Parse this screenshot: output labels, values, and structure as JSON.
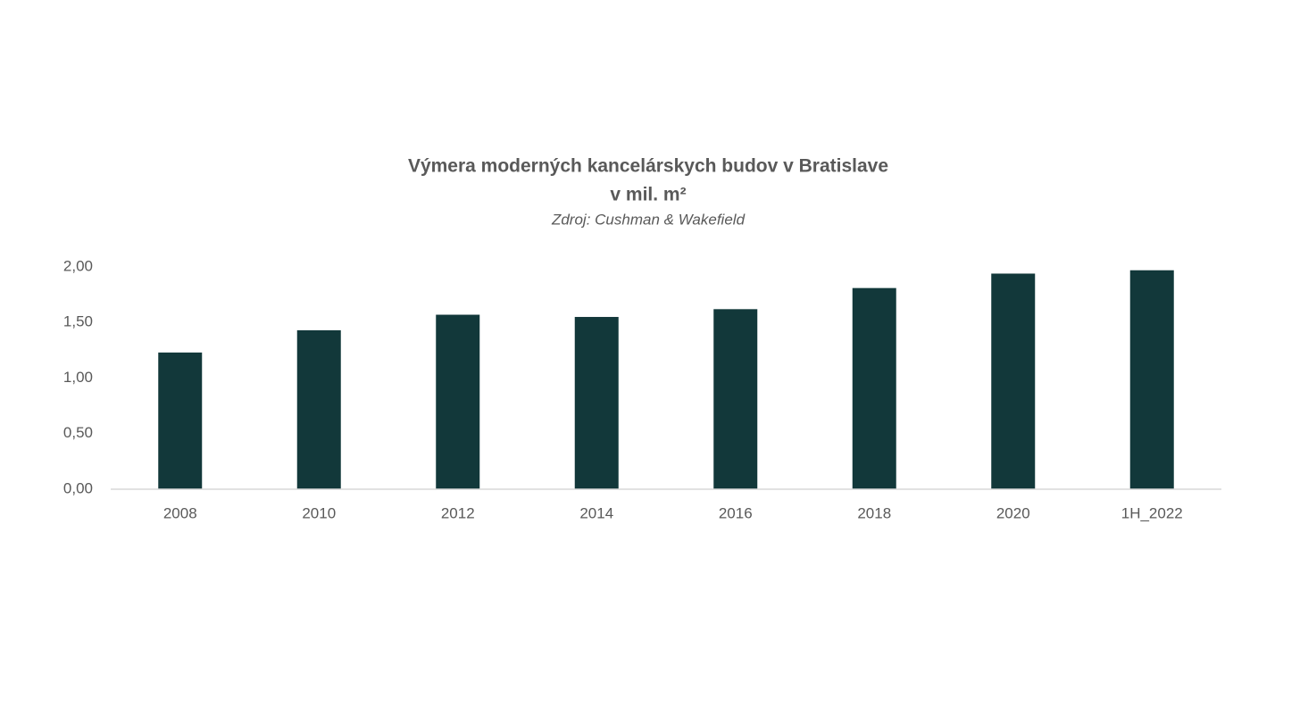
{
  "chart_data": {
    "type": "bar",
    "title": [
      "Výmera moderných kancelárskych budov v Bratislave",
      "v mil. m²"
    ],
    "source": "Zdroj: Cushman & Wakefield",
    "categories": [
      "2008",
      "2010",
      "2012",
      "2014",
      "2016",
      "2018",
      "2020",
      "1H_2022"
    ],
    "values": [
      1.23,
      1.43,
      1.57,
      1.55,
      1.62,
      1.81,
      1.94,
      1.97
    ],
    "color": "#12383a",
    "ylim": [
      0,
      2
    ],
    "yticks": [
      {
        "value": 0,
        "label": "0,00"
      },
      {
        "value": 0.5,
        "label": "0,50"
      },
      {
        "value": 1,
        "label": "1,00"
      },
      {
        "value": 1.5,
        "label": "1,50"
      },
      {
        "value": 2,
        "label": "2,00"
      }
    ],
    "grid": false
  }
}
